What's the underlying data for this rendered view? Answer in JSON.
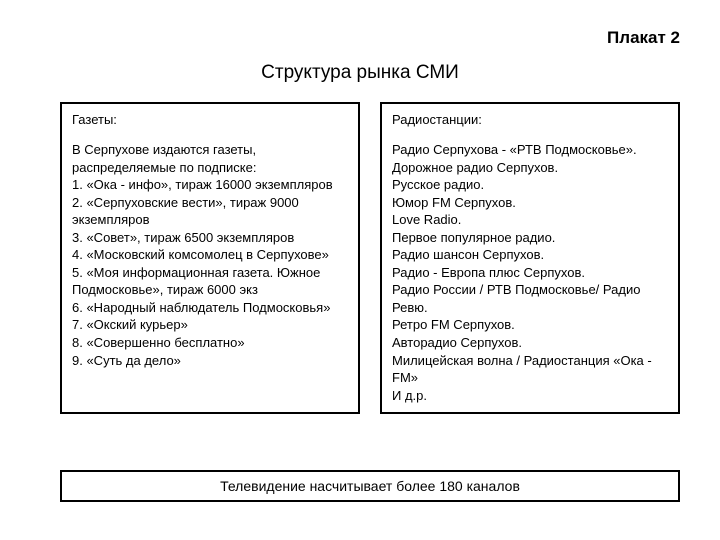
{
  "header_label": "Плакат 2",
  "title": "Структура рынка СМИ",
  "left": {
    "heading": "Газеты:",
    "intro": "В Серпухове издаются газеты, распределяемые по подписке:",
    "items": [
      "1. «Ока - инфо», тираж 16000 экземпляров",
      "2. «Серпуховские вести», тираж 9000 экземпляров",
      "3. «Совет», тираж 6500 экземпляров",
      "4. «Московский комсомолец в Серпухове»",
      "5. «Моя информационная газета. Южное Подмосковье», тираж 6000 экз",
      "6. «Народный наблюдатель Подмосковья»",
      "7. «Окский курьер»",
      "8. «Совершенно бесплатно»",
      "9. «Суть да дело»"
    ]
  },
  "right": {
    "heading": "Радиостанции:",
    "lines": [
      "Радио Серпухова - «РТВ Подмосковье».",
      "Дорожное радио Серпухов.",
      "Русское радио.",
      "Юмор FM Серпухов.",
      "Love Radio.",
      "Первое популярное радио.",
      "Радио шансон Серпухов.",
      "Радио - Европа плюс Серпухов.",
      "Радио России / РТВ Подмосковье/ Радио Ревю.",
      "Ретро FM Серпухов.",
      "Авторадио Серпухов.",
      "Милицейская волна / Радиостанция «Ока - FM»",
      "И д.р."
    ]
  },
  "footer": "Телевидение насчитывает более 180 каналов",
  "style": {
    "background_color": "#ffffff",
    "border_color": "#000000",
    "text_color": "#000000",
    "title_fontsize": 19,
    "header_label_fontsize": 17,
    "body_fontsize": 13,
    "footer_fontsize": 14
  }
}
